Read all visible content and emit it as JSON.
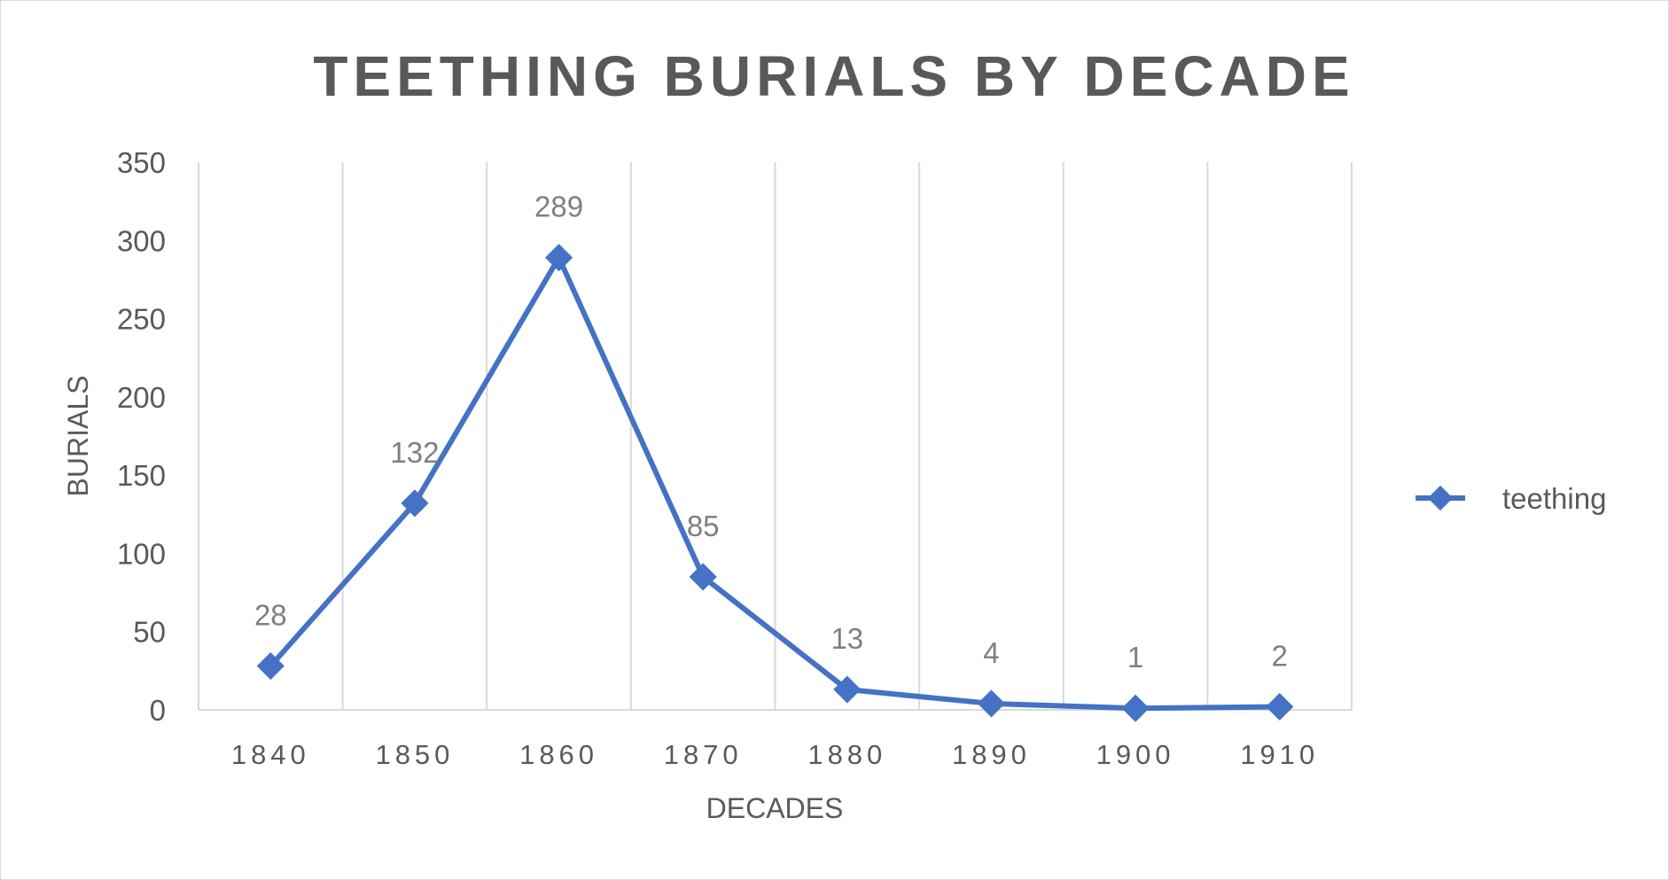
{
  "chart_data": {
    "type": "line",
    "title": "TEETHING BURIALS BY DECADE",
    "xlabel": "DECADES",
    "ylabel": "BURIALS",
    "categories": [
      "1840",
      "1850",
      "1860",
      "1870",
      "1880",
      "1890",
      "1900",
      "1910"
    ],
    "series": [
      {
        "name": "teething",
        "values": [
          28,
          132,
          289,
          85,
          13,
          4,
          1,
          2
        ],
        "color": "#4472c4"
      }
    ],
    "ylim": [
      0,
      350
    ],
    "yticks": [
      "0",
      "50",
      "100",
      "150",
      "200",
      "250",
      "300",
      "350"
    ],
    "grid": "vertical",
    "legend": "right",
    "data_labels": true
  }
}
